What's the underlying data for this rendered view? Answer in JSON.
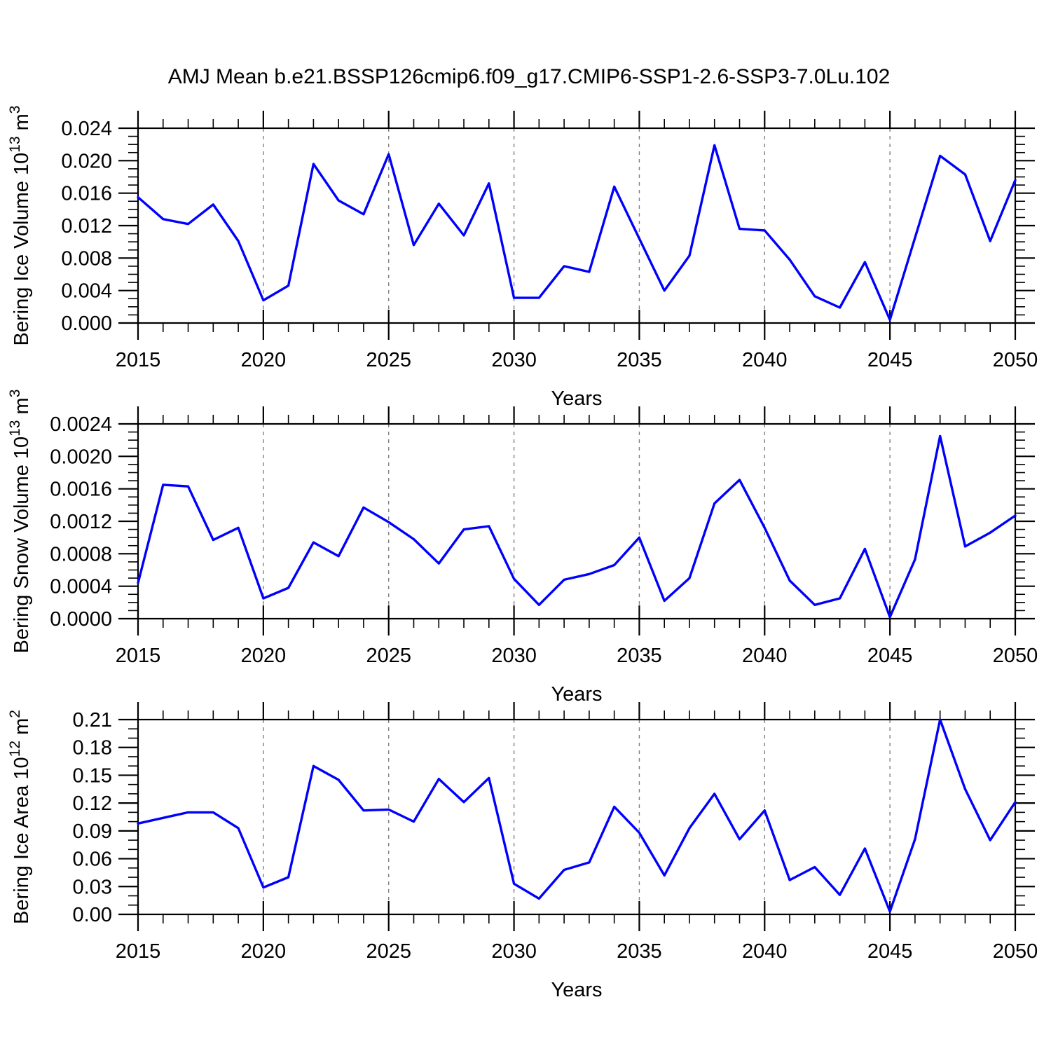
{
  "figure": {
    "title": "AMJ Mean b.e21.BSSP126cmip6.f09_g17.CMIP6-SSP1-2.6-SSP3-7.0Lu.102",
    "xlabel": "Years",
    "background": "#ffffff",
    "line_color": "#0000ff",
    "axis_color": "#000000",
    "grid_color": "#808080"
  },
  "chart_data": [
    {
      "type": "line",
      "name": "bering-ice-volume",
      "ylabel": "Bering Ice Volume 10¹³ m³",
      "ylabel_parts": {
        "base": "Bering Ice Volume 10",
        "exp": "13",
        "unit": " m",
        "unit_exp": "3"
      },
      "xlabel": "Years",
      "x": [
        2015,
        2016,
        2017,
        2018,
        2019,
        2020,
        2021,
        2022,
        2023,
        2024,
        2025,
        2026,
        2027,
        2028,
        2029,
        2030,
        2031,
        2032,
        2033,
        2034,
        2035,
        2036,
        2037,
        2038,
        2039,
        2040,
        2041,
        2042,
        2043,
        2044,
        2045,
        2046,
        2047,
        2048,
        2049,
        2050
      ],
      "values": [
        0.0155,
        0.0128,
        0.0122,
        0.0146,
        0.0101,
        0.0028,
        0.0046,
        0.0196,
        0.0151,
        0.0134,
        0.0208,
        0.0096,
        0.0147,
        0.0108,
        0.0172,
        0.0031,
        0.0031,
        0.007,
        0.0063,
        0.0168,
        0.0104,
        0.004,
        0.0083,
        0.0219,
        0.0116,
        0.0114,
        0.0078,
        0.0033,
        0.0019,
        0.0075,
        0.0004,
        0.0105,
        0.0206,
        0.0183,
        0.0101,
        0.0176
      ],
      "ylim": [
        0,
        0.024
      ],
      "xlim": [
        2015,
        2050
      ],
      "ytick_labels": [
        "0.000",
        "0.004",
        "0.008",
        "0.012",
        "0.016",
        "0.020",
        "0.024"
      ],
      "yminors_per_major": 4,
      "xtick_labels": [
        "2015",
        "2020",
        "2025",
        "2030",
        "2035",
        "2040",
        "2045",
        "2050"
      ],
      "xtick_major_step": 5,
      "xminor_step": 1,
      "grid_years": [
        2020,
        2025,
        2030,
        2035,
        2040,
        2045
      ],
      "grid_on": true,
      "legend": "none",
      "line_color": "#0000ff"
    },
    {
      "type": "line",
      "name": "bering-snow-volume",
      "ylabel": "Bering Snow Volume 10¹³ m³",
      "ylabel_parts": {
        "base": "Bering Snow Volume 10",
        "exp": "13",
        "unit": " m",
        "unit_exp": "3"
      },
      "xlabel": "Years",
      "x": [
        2015,
        2016,
        2017,
        2018,
        2019,
        2020,
        2021,
        2022,
        2023,
        2024,
        2025,
        2026,
        2027,
        2028,
        2029,
        2030,
        2031,
        2032,
        2033,
        2034,
        2035,
        2036,
        2037,
        2038,
        2039,
        2040,
        2041,
        2042,
        2043,
        2044,
        2045,
        2046,
        2047,
        2048,
        2049,
        2050
      ],
      "values": [
        0.00044,
        0.00165,
        0.00163,
        0.00097,
        0.00112,
        0.00025,
        0.00038,
        0.00094,
        0.00077,
        0.00137,
        0.00119,
        0.00098,
        0.00068,
        0.0011,
        0.00114,
        0.00049,
        0.00017,
        0.00048,
        0.00055,
        0.00066,
        0.001,
        0.00022,
        0.0005,
        0.00142,
        0.00171,
        0.00112,
        0.00047,
        0.00017,
        0.00025,
        0.00086,
        2e-05,
        0.00073,
        0.00225,
        0.00089,
        0.00106,
        0.00127
      ],
      "ylim": [
        0,
        0.0024
      ],
      "xlim": [
        2015,
        2050
      ],
      "ytick_labels": [
        "0.0000",
        "0.0004",
        "0.0008",
        "0.0012",
        "0.0016",
        "0.0020",
        "0.0024"
      ],
      "yminors_per_major": 4,
      "xtick_labels": [
        "2015",
        "2020",
        "2025",
        "2030",
        "2035",
        "2040",
        "2045",
        "2050"
      ],
      "xtick_major_step": 5,
      "xminor_step": 1,
      "grid_years": [
        2020,
        2025,
        2030,
        2035,
        2040,
        2045
      ],
      "grid_on": true,
      "legend": "none",
      "line_color": "#0000ff"
    },
    {
      "type": "line",
      "name": "bering-ice-area",
      "ylabel": "Bering Ice Area 10¹² m²",
      "ylabel_parts": {
        "base": "Bering Ice Area 10",
        "exp": "12",
        "unit": " m",
        "unit_exp": "2"
      },
      "xlabel": "Years",
      "x": [
        2015,
        2016,
        2017,
        2018,
        2019,
        2020,
        2021,
        2022,
        2023,
        2024,
        2025,
        2026,
        2027,
        2028,
        2029,
        2030,
        2031,
        2032,
        2033,
        2034,
        2035,
        2036,
        2037,
        2038,
        2039,
        2040,
        2041,
        2042,
        2043,
        2044,
        2045,
        2046,
        2047,
        2048,
        2049,
        2050
      ],
      "values": [
        0.098,
        0.104,
        0.11,
        0.11,
        0.093,
        0.029,
        0.04,
        0.16,
        0.145,
        0.112,
        0.113,
        0.1,
        0.146,
        0.121,
        0.147,
        0.033,
        0.017,
        0.048,
        0.056,
        0.116,
        0.088,
        0.042,
        0.093,
        0.13,
        0.081,
        0.112,
        0.037,
        0.051,
        0.021,
        0.071,
        0.003,
        0.081,
        0.21,
        0.135,
        0.08,
        0.121
      ],
      "ylim": [
        0,
        0.21
      ],
      "xlim": [
        2015,
        2050
      ],
      "ytick_labels": [
        "0.00",
        "0.03",
        "0.06",
        "0.09",
        "0.12",
        "0.15",
        "0.18",
        "0.21"
      ],
      "yminors_per_major": 3,
      "xtick_labels": [
        "2015",
        "2020",
        "2025",
        "2030",
        "2035",
        "2040",
        "2045",
        "2050"
      ],
      "xtick_major_step": 5,
      "xminor_step": 1,
      "grid_years": [
        2020,
        2025,
        2030,
        2035,
        2040,
        2045
      ],
      "grid_on": true,
      "legend": "none",
      "line_color": "#0000ff"
    }
  ]
}
